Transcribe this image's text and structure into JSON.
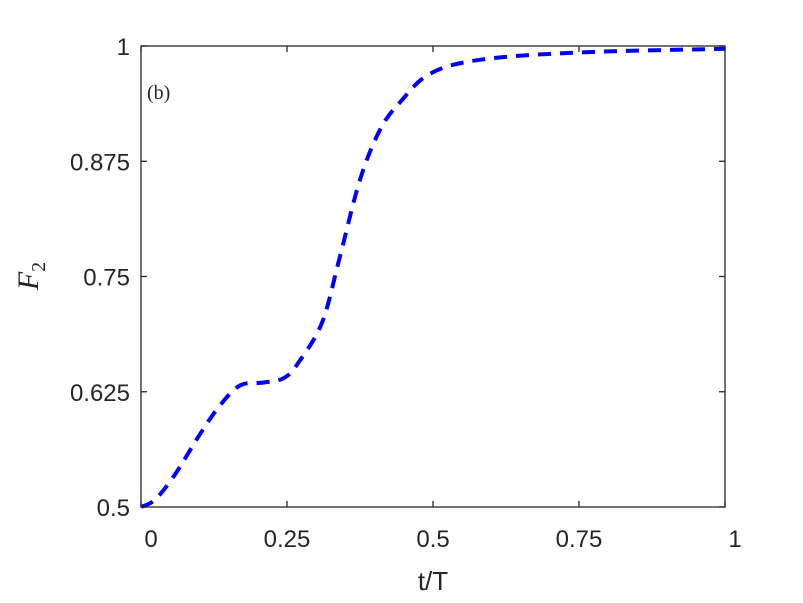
{
  "chart_data": {
    "type": "line",
    "title": "",
    "panel_label": "(b)",
    "xlabel": "t/T",
    "ylabel": "F",
    "ylabel_subscript": "2",
    "xlim": [
      0,
      1
    ],
    "ylim": [
      0.5,
      1
    ],
    "xticks": [
      0,
      0.25,
      0.5,
      0.75,
      1
    ],
    "xtick_labels": [
      "0",
      "0.25",
      "0.5",
      "0.75",
      "1"
    ],
    "yticks": [
      0.5,
      0.625,
      0.75,
      0.875,
      1
    ],
    "ytick_labels": [
      "0.5",
      "0.625",
      "0.75",
      "0.875",
      "1"
    ],
    "grid": false,
    "legend": null,
    "series": [
      {
        "name": "F2",
        "color": "#0000ff",
        "style": "dashed",
        "x": [
          0.0,
          0.024,
          0.058,
          0.1,
          0.135,
          0.17,
          0.21,
          0.245,
          0.27,
          0.31,
          0.34,
          0.375,
          0.41,
          0.445,
          0.495,
          0.58,
          0.75,
          1.0
        ],
        "y": [
          0.5,
          0.508,
          0.535,
          0.578,
          0.61,
          0.632,
          0.635,
          0.64,
          0.657,
          0.7,
          0.77,
          0.855,
          0.91,
          0.94,
          0.97,
          0.985,
          0.993,
          0.997
        ]
      }
    ]
  }
}
